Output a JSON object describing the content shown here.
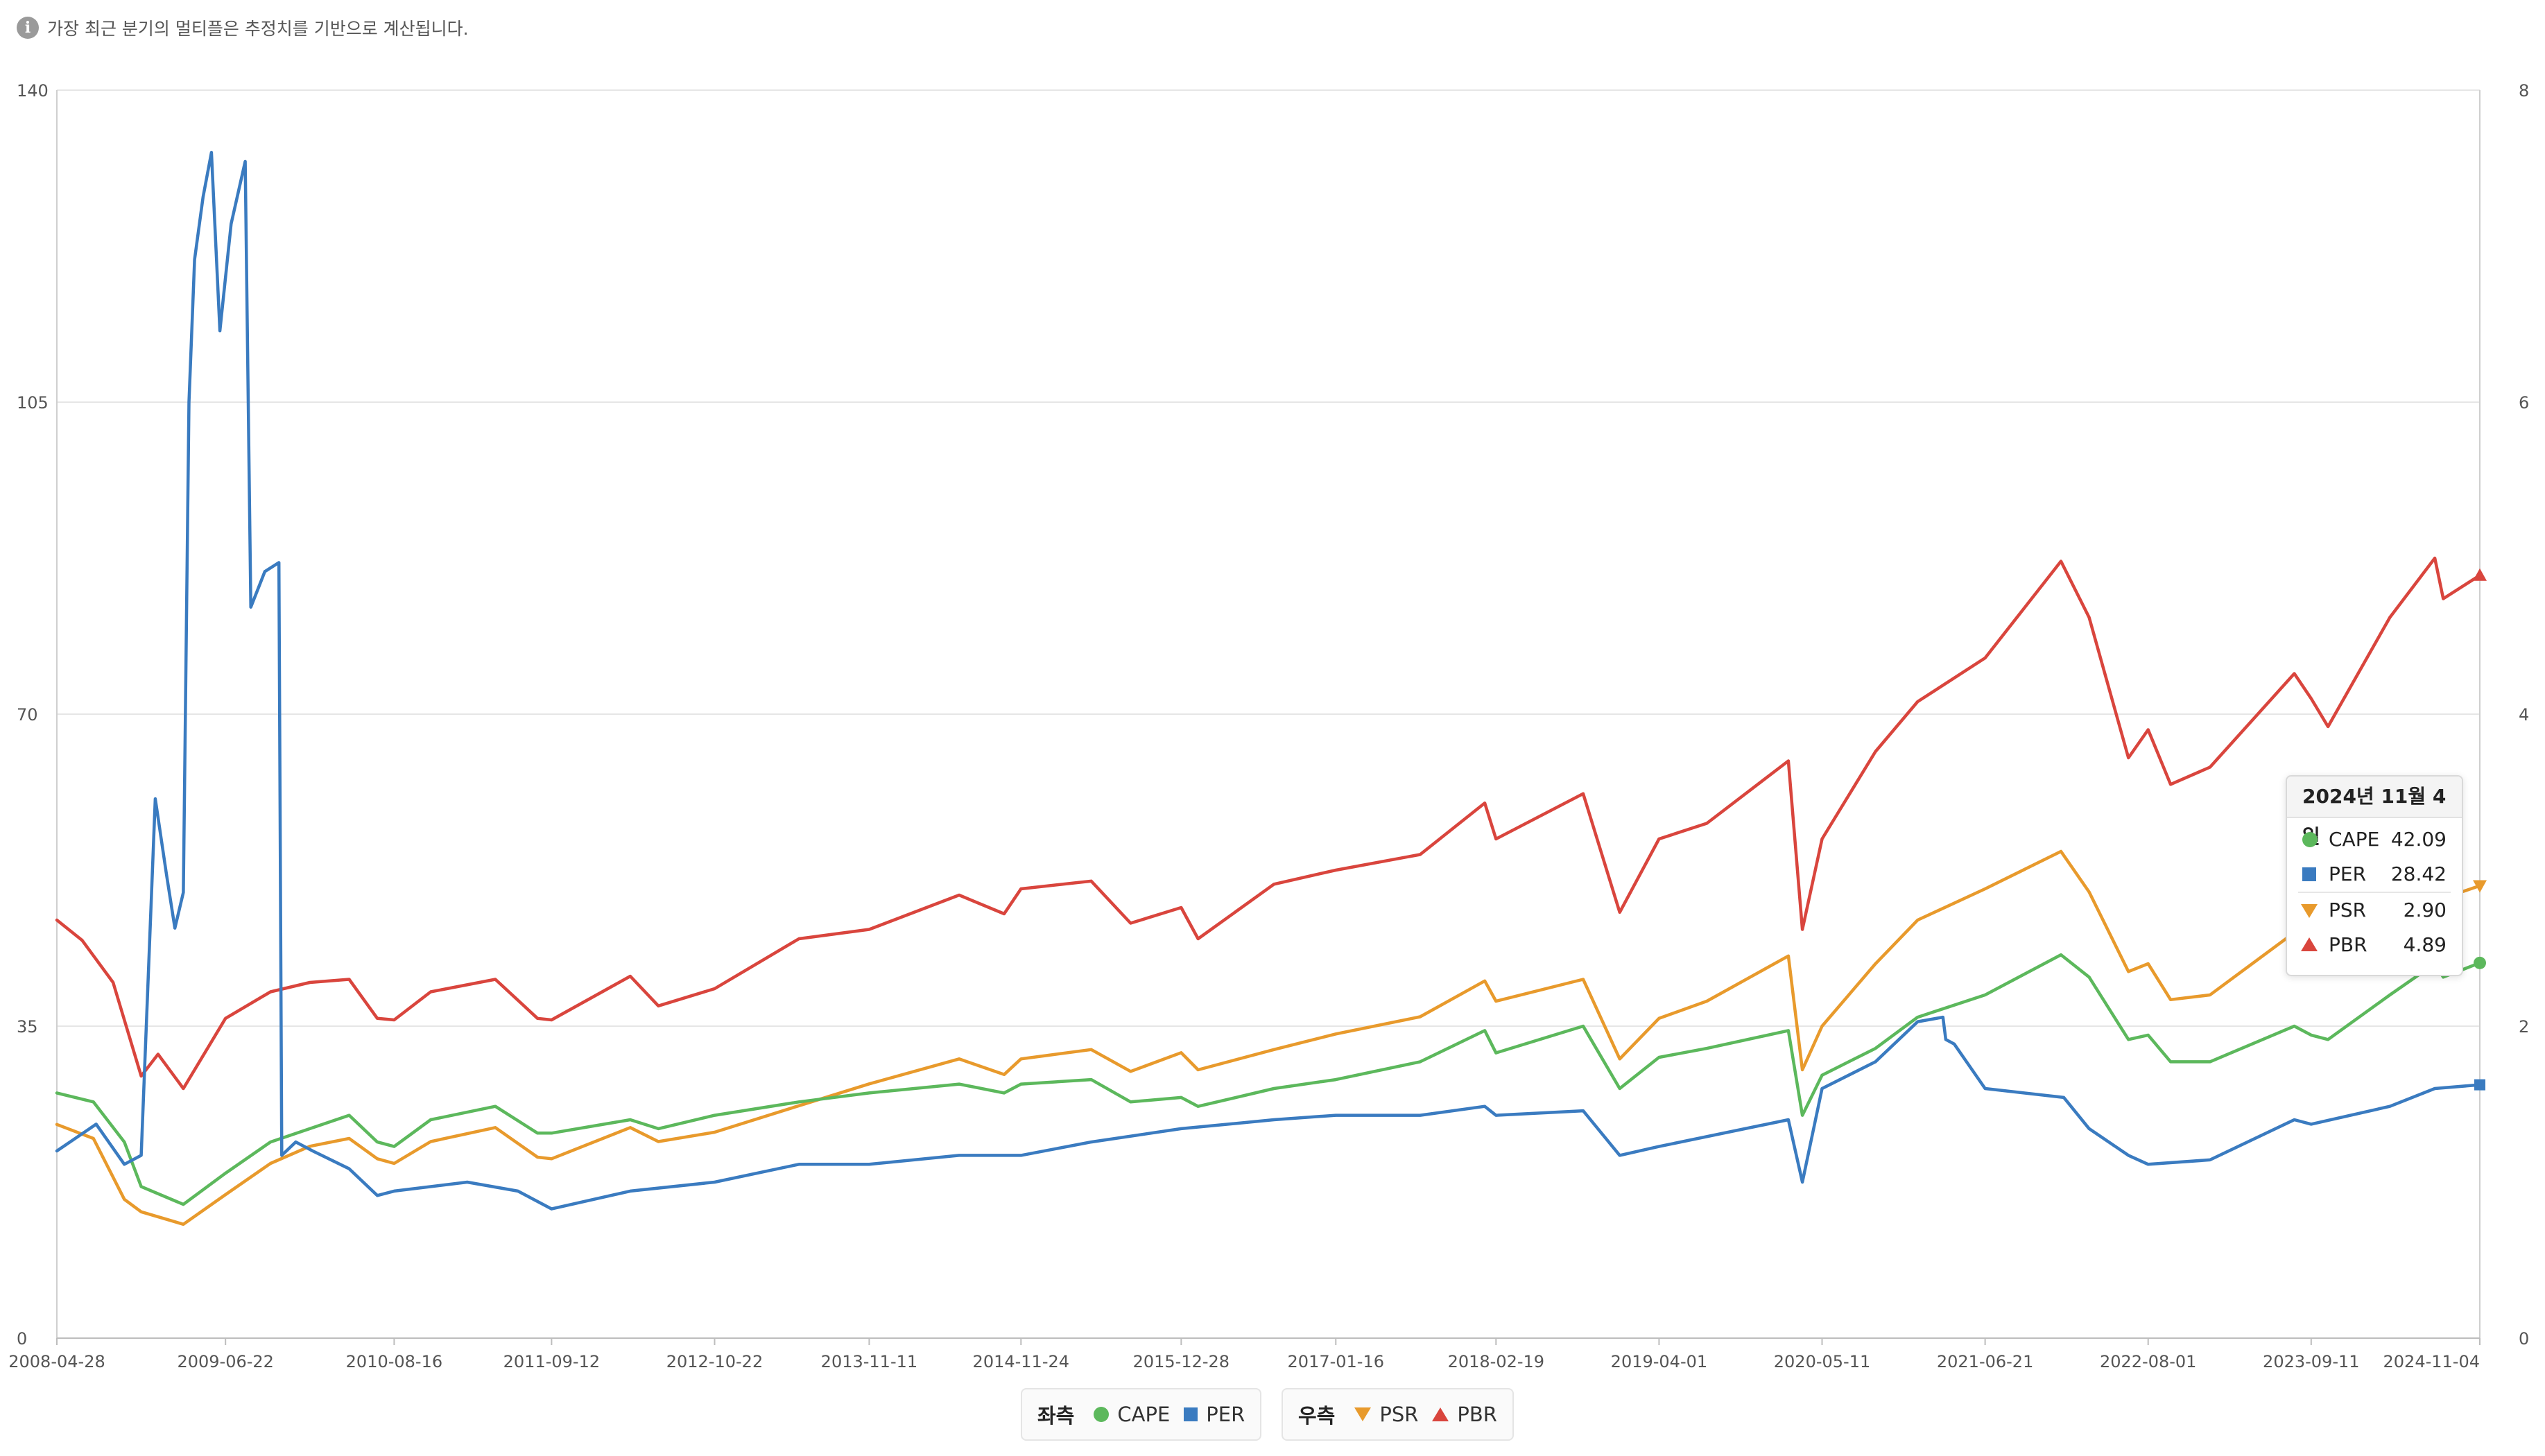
{
  "notice": {
    "icon": "info-icon",
    "text": "가장 최근 분기의 멀티플은 추정치를 기반으로 계산됩니다."
  },
  "colors": {
    "CAPE": "#5cb85c",
    "PER": "#3a7bc0",
    "PSR": "#e89a2c",
    "PBR": "#d9453d",
    "grid": "#e6e6e6",
    "axis_text": "#555555"
  },
  "tooltip": {
    "date": "2024년 11월 4일",
    "rows": [
      {
        "name": "CAPE",
        "value": "42.09"
      },
      {
        "name": "PER",
        "value": "28.42"
      },
      {
        "name": "PSR",
        "value": "2.90"
      },
      {
        "name": "PBR",
        "value": "4.89"
      }
    ]
  },
  "legend": {
    "left_group": "좌측",
    "right_group": "우측",
    "items": {
      "CAPE": "CAPE",
      "PER": "PER",
      "PSR": "PSR",
      "PBR": "PBR"
    }
  },
  "chart_data": {
    "type": "line",
    "x_tick_labels": [
      "2008-04-28",
      "2009-06-22",
      "2010-08-16",
      "2011-09-12",
      "2012-10-22",
      "2013-11-11",
      "2014-11-24",
      "2015-12-28",
      "2017-01-16",
      "2018-02-19",
      "2019-04-01",
      "2020-05-11",
      "2021-06-21",
      "2022-08-01",
      "2023-09-11",
      "2024-11-04"
    ],
    "x_tick_dates": [
      "2008-04-28",
      "2009-06-22",
      "2010-08-16",
      "2011-09-12",
      "2012-10-22",
      "2013-11-11",
      "2014-11-24",
      "2015-12-28",
      "2017-01-16",
      "2018-02-19",
      "2019-04-01",
      "2020-05-11",
      "2021-06-21",
      "2022-08-01",
      "2023-09-11",
      "2024-11-04"
    ],
    "x_range": [
      "2008-04-28",
      "2024-11-04"
    ],
    "y_left": {
      "ticks": [
        0,
        35,
        70,
        105,
        140
      ],
      "range": [
        0,
        140
      ]
    },
    "y_right": {
      "ticks": [
        0,
        2,
        4,
        6,
        8
      ],
      "range": [
        0,
        8
      ]
    },
    "grid": true,
    "legend_position": "bottom-center",
    "series": [
      {
        "name": "CAPE",
        "axis": "left",
        "marker": "circle",
        "points": [
          [
            "2008-04-28",
            27.5
          ],
          [
            "2008-07-28",
            26.5
          ],
          [
            "2008-10-13",
            22
          ],
          [
            "2008-11-24",
            17
          ],
          [
            "2009-03-09",
            15
          ],
          [
            "2009-06-22",
            18.5
          ],
          [
            "2009-10-12",
            22
          ],
          [
            "2010-01-18",
            23.5
          ],
          [
            "2010-04-26",
            25
          ],
          [
            "2010-07-05",
            22
          ],
          [
            "2010-08-16",
            21.5
          ],
          [
            "2010-11-15",
            24.5
          ],
          [
            "2011-04-25",
            26
          ],
          [
            "2011-08-08",
            23
          ],
          [
            "2011-09-12",
            23
          ],
          [
            "2012-03-26",
            24.5
          ],
          [
            "2012-06-04",
            23.5
          ],
          [
            "2012-10-22",
            25
          ],
          [
            "2013-05-20",
            26.5
          ],
          [
            "2013-11-11",
            27.5
          ],
          [
            "2014-06-23",
            28.5
          ],
          [
            "2014-10-13",
            27.5
          ],
          [
            "2014-11-24",
            28.5
          ],
          [
            "2015-05-18",
            29
          ],
          [
            "2015-08-24",
            26.5
          ],
          [
            "2015-12-28",
            27
          ],
          [
            "2016-02-08",
            26
          ],
          [
            "2016-08-15",
            28
          ],
          [
            "2017-01-16",
            29
          ],
          [
            "2017-08-14",
            31
          ],
          [
            "2018-01-22",
            34.5
          ],
          [
            "2018-02-19",
            32
          ],
          [
            "2018-09-24",
            35
          ],
          [
            "2018-12-24",
            28
          ],
          [
            "2019-04-01",
            31.5
          ],
          [
            "2019-07-29",
            32.5
          ],
          [
            "2020-02-17",
            34.5
          ],
          [
            "2020-03-23",
            25
          ],
          [
            "2020-05-11",
            29.5
          ],
          [
            "2020-09-21",
            32.5
          ],
          [
            "2021-01-04",
            36
          ],
          [
            "2021-06-21",
            38.5
          ],
          [
            "2021-12-27",
            43
          ],
          [
            "2022-03-07",
            40.5
          ],
          [
            "2022-06-13",
            33.5
          ],
          [
            "2022-08-01",
            34
          ],
          [
            "2022-09-26",
            31
          ],
          [
            "2023-01-02",
            31
          ],
          [
            "2023-07-31",
            35
          ],
          [
            "2023-09-11",
            34
          ],
          [
            "2023-10-23",
            33.5
          ],
          [
            "2024-03-25",
            38.5
          ],
          [
            "2024-07-15",
            42
          ],
          [
            "2024-08-05",
            40.5
          ],
          [
            "2024-11-04",
            42.09
          ]
        ]
      },
      {
        "name": "PER",
        "axis": "left",
        "marker": "square",
        "points": [
          [
            "2008-04-28",
            21
          ],
          [
            "2008-08-04",
            24
          ],
          [
            "2008-10-13",
            19.5
          ],
          [
            "2008-11-24",
            20.5
          ],
          [
            "2008-12-29",
            60.5
          ],
          [
            "2009-01-26",
            52
          ],
          [
            "2009-02-16",
            46
          ],
          [
            "2009-03-09",
            50
          ],
          [
            "2009-03-23",
            105
          ],
          [
            "2009-04-06",
            121
          ],
          [
            "2009-04-27",
            128
          ],
          [
            "2009-05-18",
            133
          ],
          [
            "2009-06-08",
            113
          ],
          [
            "2009-07-06",
            125
          ],
          [
            "2009-08-10",
            132
          ],
          [
            "2009-08-24",
            82
          ],
          [
            "2009-09-28",
            86
          ],
          [
            "2009-11-02",
            87
          ],
          [
            "2009-11-09",
            20.5
          ],
          [
            "2009-12-14",
            22
          ],
          [
            "2010-01-25",
            21
          ],
          [
            "2010-04-26",
            19
          ],
          [
            "2010-07-05",
            16
          ],
          [
            "2010-08-16",
            16.5
          ],
          [
            "2011-02-14",
            17.5
          ],
          [
            "2011-06-20",
            16.5
          ],
          [
            "2011-09-12",
            14.5
          ],
          [
            "2012-03-26",
            16.5
          ],
          [
            "2012-10-22",
            17.5
          ],
          [
            "2013-05-20",
            19.5
          ],
          [
            "2013-11-11",
            19.5
          ],
          [
            "2014-06-23",
            20.5
          ],
          [
            "2014-11-24",
            20.5
          ],
          [
            "2015-05-18",
            22
          ],
          [
            "2015-12-28",
            23.5
          ],
          [
            "2016-08-15",
            24.5
          ],
          [
            "2017-01-16",
            25
          ],
          [
            "2017-08-14",
            25
          ],
          [
            "2018-01-22",
            26
          ],
          [
            "2018-02-19",
            25
          ],
          [
            "2018-09-24",
            25.5
          ],
          [
            "2018-12-24",
            20.5
          ],
          [
            "2019-04-01",
            21.5
          ],
          [
            "2020-02-17",
            24.5
          ],
          [
            "2020-03-23",
            17.5
          ],
          [
            "2020-05-11",
            28
          ],
          [
            "2020-09-21",
            31
          ],
          [
            "2021-01-04",
            35.5
          ],
          [
            "2021-03-08",
            36
          ],
          [
            "2021-03-15",
            33.5
          ],
          [
            "2021-04-05",
            33
          ],
          [
            "2021-06-21",
            28
          ],
          [
            "2022-01-03",
            27
          ],
          [
            "2022-03-07",
            23.5
          ],
          [
            "2022-06-13",
            20.5
          ],
          [
            "2022-08-01",
            19.5
          ],
          [
            "2023-01-02",
            20
          ],
          [
            "2023-07-31",
            24.5
          ],
          [
            "2023-09-11",
            24
          ],
          [
            "2024-03-25",
            26
          ],
          [
            "2024-07-15",
            28
          ],
          [
            "2024-11-04",
            28.42
          ]
        ]
      },
      {
        "name": "PSR",
        "axis": "right",
        "marker": "triangle-down",
        "points": [
          [
            "2008-04-28",
            1.37
          ],
          [
            "2008-07-28",
            1.28
          ],
          [
            "2008-10-13",
            0.89
          ],
          [
            "2008-11-24",
            0.81
          ],
          [
            "2009-03-09",
            0.73
          ],
          [
            "2009-06-22",
            0.92
          ],
          [
            "2009-10-12",
            1.12
          ],
          [
            "2010-01-18",
            1.23
          ],
          [
            "2010-04-26",
            1.28
          ],
          [
            "2010-07-05",
            1.15
          ],
          [
            "2010-08-16",
            1.12
          ],
          [
            "2010-11-15",
            1.26
          ],
          [
            "2011-04-25",
            1.35
          ],
          [
            "2011-08-08",
            1.16
          ],
          [
            "2011-09-12",
            1.15
          ],
          [
            "2012-03-26",
            1.35
          ],
          [
            "2012-06-04",
            1.26
          ],
          [
            "2012-10-22",
            1.32
          ],
          [
            "2013-05-20",
            1.49
          ],
          [
            "2013-11-11",
            1.63
          ],
          [
            "2014-06-23",
            1.79
          ],
          [
            "2014-10-13",
            1.69
          ],
          [
            "2014-11-24",
            1.79
          ],
          [
            "2015-05-18",
            1.85
          ],
          [
            "2015-08-24",
            1.71
          ],
          [
            "2015-12-28",
            1.83
          ],
          [
            "2016-02-08",
            1.72
          ],
          [
            "2016-08-15",
            1.85
          ],
          [
            "2017-01-16",
            1.95
          ],
          [
            "2017-08-14",
            2.06
          ],
          [
            "2018-01-22",
            2.29
          ],
          [
            "2018-02-19",
            2.16
          ],
          [
            "2018-09-24",
            2.3
          ],
          [
            "2018-12-24",
            1.79
          ],
          [
            "2019-04-01",
            2.05
          ],
          [
            "2019-07-29",
            2.16
          ],
          [
            "2020-02-17",
            2.45
          ],
          [
            "2020-03-23",
            1.72
          ],
          [
            "2020-05-11",
            2.0
          ],
          [
            "2020-09-21",
            2.4
          ],
          [
            "2021-01-04",
            2.68
          ],
          [
            "2021-06-21",
            2.88
          ],
          [
            "2021-12-27",
            3.12
          ],
          [
            "2022-03-07",
            2.86
          ],
          [
            "2022-06-13",
            2.35
          ],
          [
            "2022-08-01",
            2.4
          ],
          [
            "2022-09-26",
            2.17
          ],
          [
            "2023-01-02",
            2.2
          ],
          [
            "2023-07-31",
            2.6
          ],
          [
            "2023-09-11",
            2.46
          ],
          [
            "2023-10-23",
            2.34
          ],
          [
            "2024-03-25",
            2.74
          ],
          [
            "2024-07-15",
            2.97
          ],
          [
            "2024-08-05",
            2.82
          ],
          [
            "2024-11-04",
            2.9
          ]
        ]
      },
      {
        "name": "PBR",
        "axis": "right",
        "marker": "triangle-up",
        "points": [
          [
            "2008-04-28",
            2.68
          ],
          [
            "2008-06-30",
            2.55
          ],
          [
            "2008-09-15",
            2.28
          ],
          [
            "2008-11-24",
            1.68
          ],
          [
            "2009-01-05",
            1.82
          ],
          [
            "2009-03-09",
            1.6
          ],
          [
            "2009-06-22",
            2.05
          ],
          [
            "2009-10-12",
            2.22
          ],
          [
            "2010-01-18",
            2.28
          ],
          [
            "2010-04-26",
            2.3
          ],
          [
            "2010-07-05",
            2.05
          ],
          [
            "2010-08-16",
            2.04
          ],
          [
            "2010-11-15",
            2.22
          ],
          [
            "2011-04-25",
            2.3
          ],
          [
            "2011-08-08",
            2.05
          ],
          [
            "2011-09-12",
            2.04
          ],
          [
            "2012-03-26",
            2.32
          ],
          [
            "2012-06-04",
            2.13
          ],
          [
            "2012-10-22",
            2.24
          ],
          [
            "2013-05-20",
            2.56
          ],
          [
            "2013-11-11",
            2.62
          ],
          [
            "2014-06-23",
            2.84
          ],
          [
            "2014-10-13",
            2.72
          ],
          [
            "2014-11-24",
            2.88
          ],
          [
            "2015-05-18",
            2.93
          ],
          [
            "2015-08-24",
            2.66
          ],
          [
            "2015-12-28",
            2.76
          ],
          [
            "2016-02-08",
            2.56
          ],
          [
            "2016-08-15",
            2.91
          ],
          [
            "2017-01-16",
            3.0
          ],
          [
            "2017-08-14",
            3.1
          ],
          [
            "2018-01-22",
            3.43
          ],
          [
            "2018-02-19",
            3.2
          ],
          [
            "2018-09-24",
            3.49
          ],
          [
            "2018-12-24",
            2.73
          ],
          [
            "2019-04-01",
            3.2
          ],
          [
            "2019-07-29",
            3.3
          ],
          [
            "2020-02-17",
            3.7
          ],
          [
            "2020-03-23",
            2.62
          ],
          [
            "2020-05-11",
            3.2
          ],
          [
            "2020-09-21",
            3.76
          ],
          [
            "2021-01-04",
            4.08
          ],
          [
            "2021-06-21",
            4.36
          ],
          [
            "2021-12-27",
            4.98
          ],
          [
            "2022-03-07",
            4.62
          ],
          [
            "2022-06-13",
            3.72
          ],
          [
            "2022-08-01",
            3.9
          ],
          [
            "2022-09-26",
            3.55
          ],
          [
            "2023-01-02",
            3.66
          ],
          [
            "2023-07-31",
            4.26
          ],
          [
            "2023-09-11",
            4.1
          ],
          [
            "2023-10-23",
            3.92
          ],
          [
            "2024-03-25",
            4.62
          ],
          [
            "2024-07-15",
            5.0
          ],
          [
            "2024-08-05",
            4.74
          ],
          [
            "2024-11-04",
            4.89
          ]
        ]
      }
    ]
  }
}
